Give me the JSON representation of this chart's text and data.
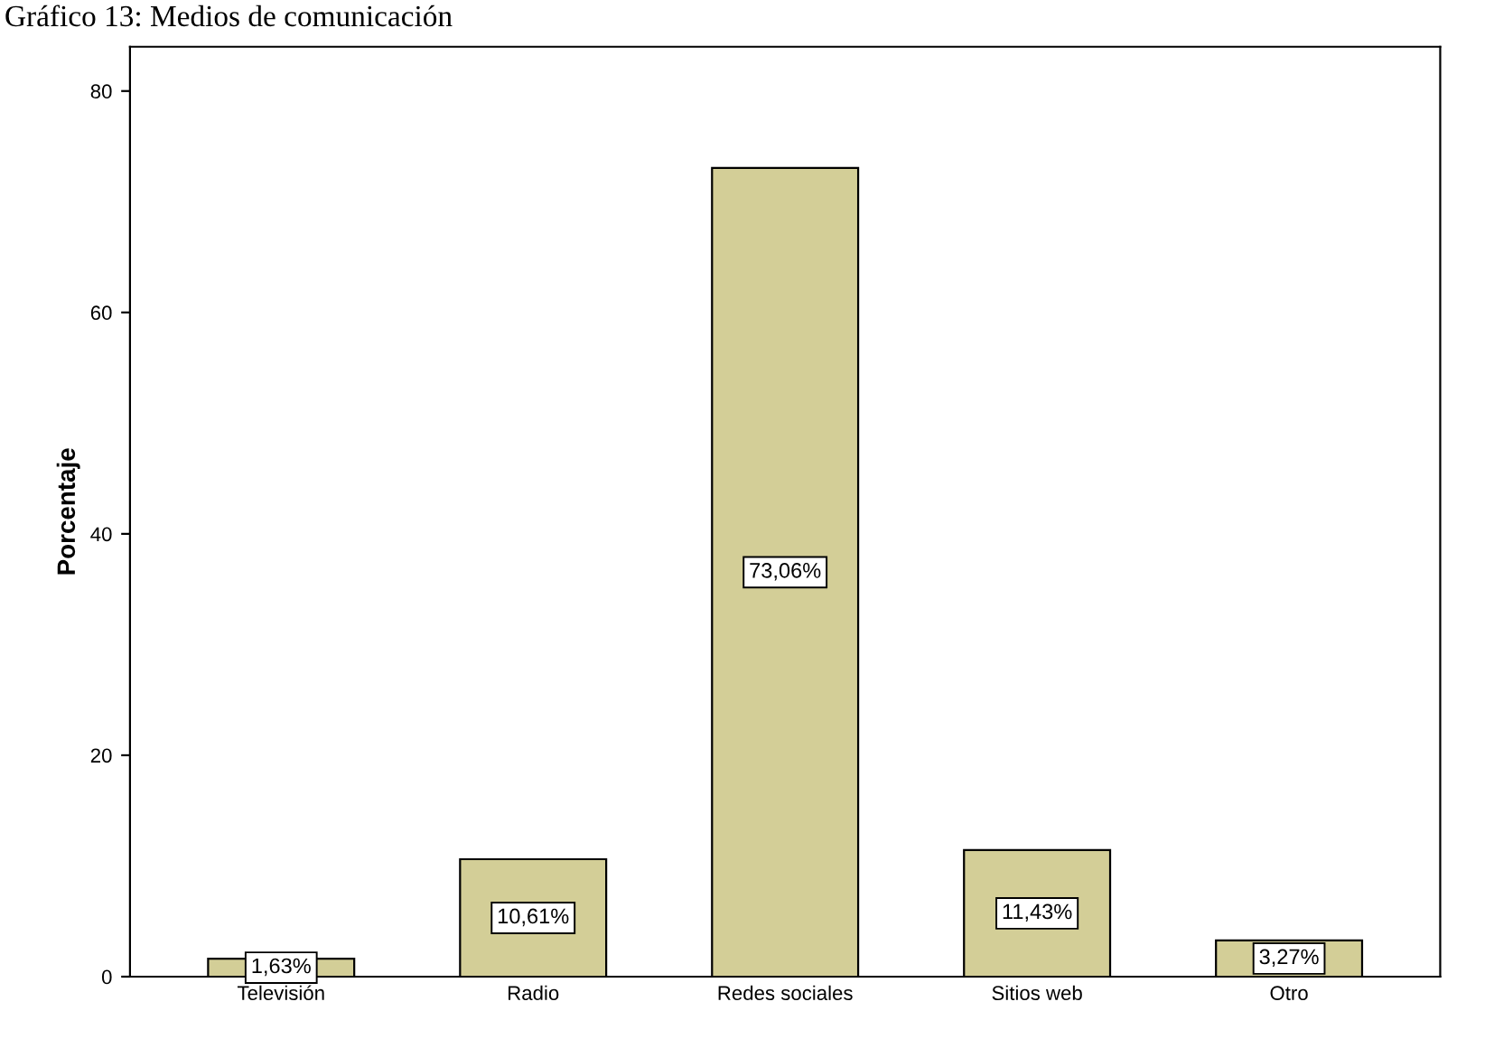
{
  "chart_data": {
    "type": "bar",
    "title": "Gráfico 13: Medios de comunicación",
    "ylabel": "Porcentaje",
    "categories": [
      "Televisión",
      "Radio",
      "Redes sociales",
      "Sitios web",
      "Otro"
    ],
    "values": [
      1.63,
      10.61,
      73.06,
      11.43,
      3.27
    ],
    "value_labels": [
      "1,63%",
      "10,61%",
      "73,06%",
      "11,43%",
      "3,27%"
    ],
    "color": "#d3ce97",
    "ylim": [
      0,
      84
    ],
    "yticks": [
      0,
      20,
      40,
      60,
      80
    ],
    "grid": false,
    "legend": false
  }
}
